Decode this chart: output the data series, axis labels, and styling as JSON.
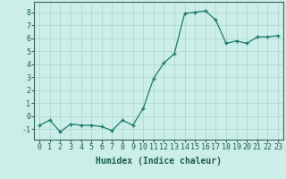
{
  "x": [
    0,
    1,
    2,
    3,
    4,
    5,
    6,
    7,
    8,
    9,
    10,
    11,
    12,
    13,
    14,
    15,
    16,
    17,
    18,
    19,
    20,
    21,
    22,
    23
  ],
  "y": [
    -0.7,
    -0.3,
    -1.2,
    -0.6,
    -0.7,
    -0.7,
    -0.8,
    -1.1,
    -0.3,
    -0.7,
    0.6,
    2.9,
    4.1,
    4.8,
    7.9,
    8.0,
    8.1,
    7.4,
    5.6,
    5.8,
    5.6,
    6.1,
    6.1,
    6.2
  ],
  "xlabel": "Humidex (Indice chaleur)",
  "ylim": [
    -1.8,
    8.8
  ],
  "xlim": [
    -0.5,
    23.5
  ],
  "yticks": [
    -1,
    0,
    1,
    2,
    3,
    4,
    5,
    6,
    7,
    8
  ],
  "xticks": [
    0,
    1,
    2,
    3,
    4,
    5,
    6,
    7,
    8,
    9,
    10,
    11,
    12,
    13,
    14,
    15,
    16,
    17,
    18,
    19,
    20,
    21,
    22,
    23
  ],
  "line_color": "#1a7a6a",
  "marker": "+",
  "bg_color": "#cceee8",
  "grid_color": "#aad4ce",
  "axis_color": "#336655",
  "tick_color": "#1a5c4e",
  "label_fontsize": 6.5,
  "tick_fontsize": 6,
  "xlabel_fontsize": 7
}
